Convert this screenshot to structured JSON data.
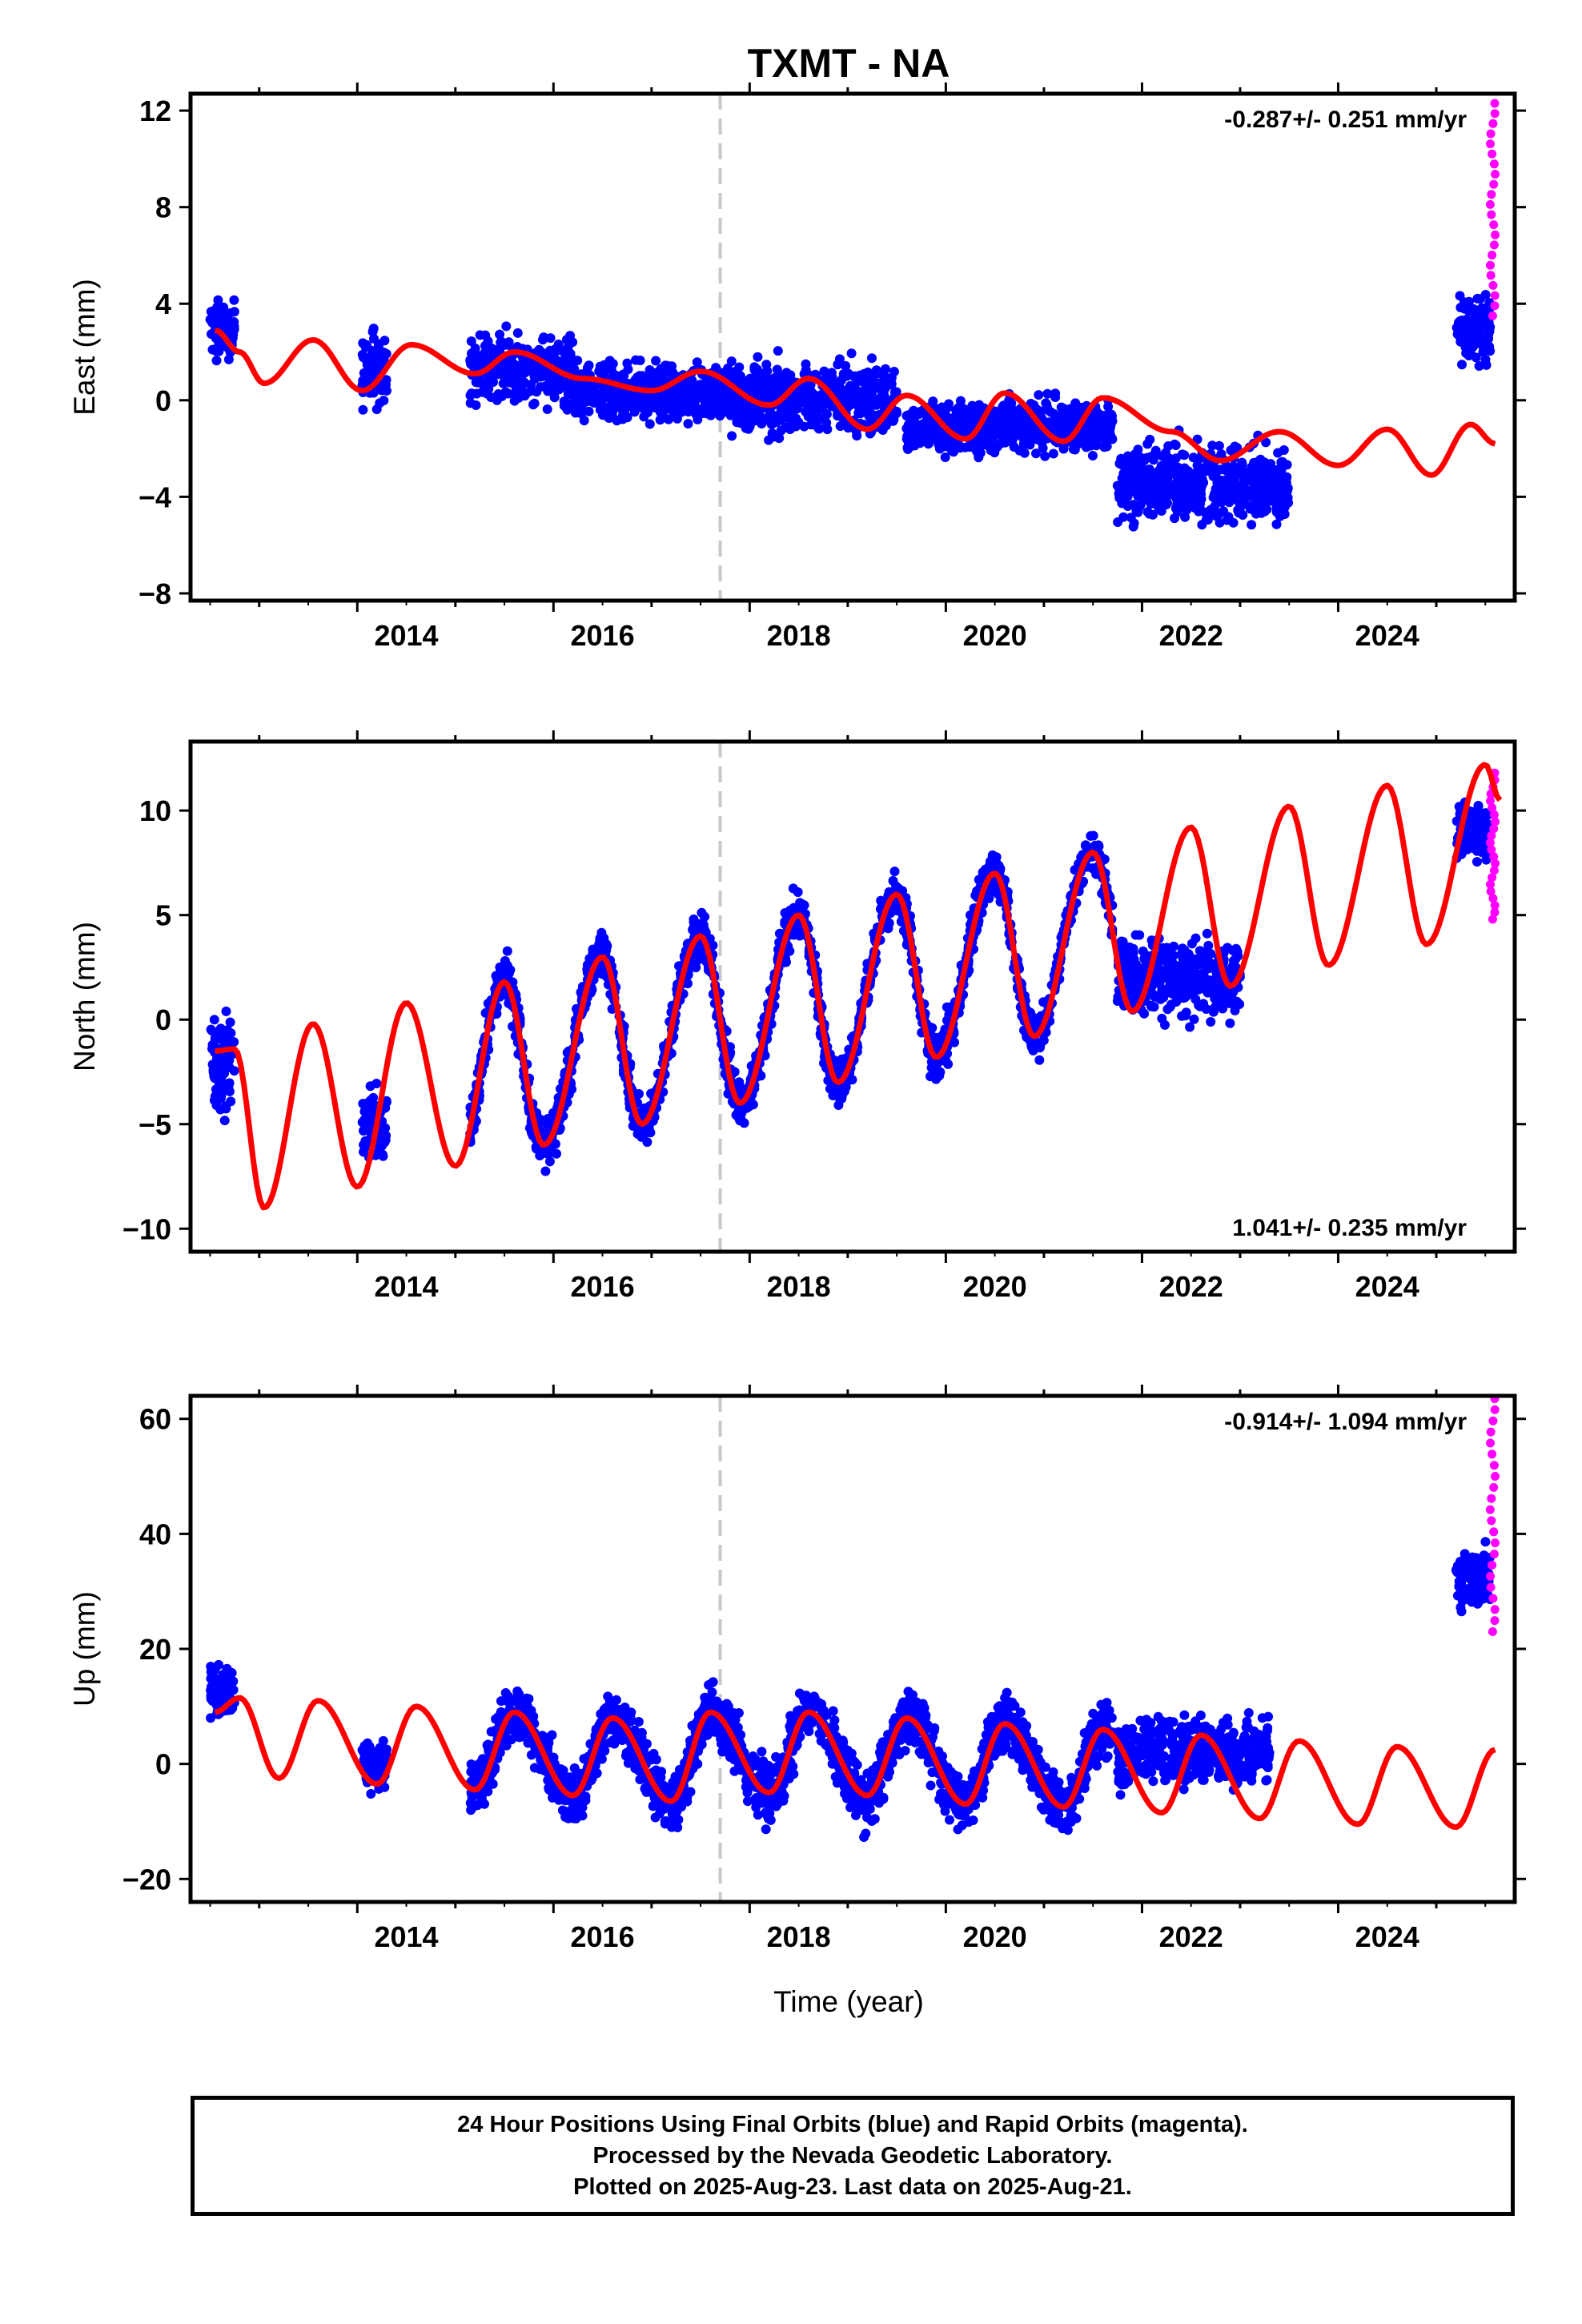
{
  "title": "TXMT - NA",
  "xlabel": "Time (year)",
  "footer": {
    "line1": "24 Hour Positions Using Final Orbits (blue) and Rapid Orbits (magenta).",
    "line2": "Processed by the Nevada Geodetic Laboratory.",
    "line3": "Plotted on 2025-Aug-23. Last data on 2025-Aug-21."
  },
  "colors": {
    "final_orbits": "#0000ff",
    "rapid_orbits": "#ff00ff",
    "model_fit": "#ff0000",
    "event_line": "#c8c8c8"
  },
  "chart_data": [
    {
      "type": "scatter",
      "ylabel": "East (mm)",
      "xlim": [
        2012.3,
        2025.8
      ],
      "ylim": [
        -8.3,
        12.7
      ],
      "xticks": [
        "2014",
        "2016",
        "2018",
        "2020",
        "2022",
        "2024"
      ],
      "yticks": [
        "−8",
        "−4",
        "0",
        "4",
        "8",
        "12"
      ],
      "ytick_values": [
        -8,
        -4,
        0,
        4,
        8,
        12
      ],
      "rate": "-0.287+/- 0.251 mm/yr",
      "rate_position": "top-right",
      "event_line_x": 2017.7,
      "model": {
        "type": "line",
        "trend_per_yr": -0.287,
        "offset": -1.6,
        "amp": 1.1,
        "x": [
          2012.55,
          2012.8,
          2013.05,
          2013.55,
          2014.05,
          2014.55,
          2015.2,
          2015.6,
          2016.3,
          2017.0,
          2017.5,
          2018.2,
          2018.6,
          2019.2,
          2019.6,
          2020.2,
          2020.6,
          2021.2,
          2021.6,
          2022.3,
          2022.8,
          2023.4,
          2024.0,
          2024.5,
          2024.95,
          2025.35,
          2025.6
        ],
        "y": [
          2.9,
          2.0,
          0.7,
          2.5,
          0.4,
          2.3,
          1.1,
          2.0,
          0.9,
          0.4,
          1.2,
          -0.2,
          0.9,
          -1.2,
          0.2,
          -1.6,
          0.3,
          -1.7,
          0.1,
          -1.3,
          -2.5,
          -1.3,
          -2.7,
          -1.2,
          -3.1,
          -1.0,
          -1.8
        ]
      },
      "final": {
        "segments": [
          {
            "x": [
              2012.5,
              2012.75
            ],
            "center": 2.9,
            "spread": 1.8
          },
          {
            "x": [
              2014.05,
              2014.3
            ],
            "center": 1.2,
            "spread": 2.5
          },
          {
            "x": [
              2015.15,
              2016.2
            ],
            "center": 1.3,
            "spread": 2.2
          },
          {
            "x": [
              2016.2,
              2017.8
            ],
            "center": 0.3,
            "spread": 1.8
          },
          {
            "x": [
              2017.8,
              2019.5
            ],
            "center": 0.1,
            "spread": 2.2
          },
          {
            "x": [
              2019.6,
              2021.7
            ],
            "center": -1.1,
            "spread": 1.6
          },
          {
            "x": [
              2021.75,
              2023.5
            ],
            "center": -3.5,
            "spread": 2.5
          },
          {
            "x": [
              2025.2,
              2025.55
            ],
            "center": 3.0,
            "spread": 2.2
          }
        ]
      },
      "rapid": {
        "x": [
          2025.55,
          2025.6
        ],
        "y": [
          3.5,
          12.3
        ]
      }
    },
    {
      "type": "scatter",
      "ylabel": "North (mm)",
      "xlim": [
        2012.3,
        2025.8
      ],
      "ylim": [
        -11.1,
        13.3
      ],
      "xticks": [
        "2014",
        "2016",
        "2018",
        "2020",
        "2022",
        "2024"
      ],
      "yticks": [
        "−10",
        "−5",
        "0",
        "5",
        "10"
      ],
      "ytick_values": [
        -10,
        -5,
        0,
        5,
        10
      ],
      "rate": "1.041+/- 0.235 mm/yr",
      "rate_position": "bottom-right",
      "event_line_x": 2017.7,
      "model": {
        "type": "line",
        "trend_per_yr": 1.041,
        "offset": -1.5,
        "amp": 5.0,
        "x": [
          2012.55,
          2012.75,
          2013.05,
          2013.55,
          2014.0,
          2014.5,
          2015.0,
          2015.5,
          2015.9,
          2016.5,
          2016.9,
          2017.5,
          2017.9,
          2018.5,
          2018.9,
          2019.5,
          2019.9,
          2020.5,
          2020.9,
          2021.5,
          2021.9,
          2022.5,
          2022.9,
          2023.5,
          2023.9,
          2024.5,
          2024.9,
          2025.5,
          2025.65
        ],
        "y": [
          -1.5,
          -1.4,
          -9.0,
          -0.2,
          -8.0,
          0.8,
          -7.0,
          1.8,
          -6.0,
          3.0,
          -5.0,
          4.0,
          -4.0,
          5.0,
          -3.0,
          6.0,
          -1.8,
          7.0,
          -0.8,
          8.0,
          0.4,
          9.2,
          1.6,
          10.2,
          2.6,
          11.2,
          3.6,
          12.2,
          10.5
        ]
      },
      "final": {
        "segments": [
          {
            "x": [
              2012.5,
              2012.75
            ],
            "center": -2.0,
            "spread": 3.5
          },
          {
            "x": [
              2014.05,
              2014.3
            ],
            "center": -5.0,
            "spread": 3.0
          },
          {
            "x": [
              2015.15,
              2021.7
            ],
            "center": 0,
            "spread": 1.8,
            "follow_model": true
          },
          {
            "x": [
              2021.75,
              2023.0
            ],
            "center": 2.0,
            "spread": 3.0
          },
          {
            "x": [
              2025.2,
              2025.55
            ],
            "center": 9.0,
            "spread": 2.0
          }
        ]
      },
      "rapid": {
        "x": [
          2025.55,
          2025.6
        ],
        "y": [
          4.8,
          11.8
        ]
      }
    },
    {
      "type": "scatter",
      "ylabel": "Up (mm)",
      "xlim": [
        2012.3,
        2025.8
      ],
      "ylim": [
        -24,
        64
      ],
      "xticks": [
        "2014",
        "2016",
        "2018",
        "2020",
        "2022",
        "2024"
      ],
      "yticks": [
        "−20",
        "0",
        "20",
        "40",
        "60"
      ],
      "ytick_values": [
        -20,
        0,
        20,
        40,
        60
      ],
      "rate": "-0.914+/- 1.094 mm/yr",
      "rate_position": "top-right",
      "event_line_x": 2017.7,
      "model": {
        "type": "line",
        "trend_per_yr": -0.914,
        "offset": 1.0,
        "amp": 8.0,
        "x": [
          2012.55,
          2012.8,
          2013.2,
          2013.6,
          2014.2,
          2014.6,
          2015.2,
          2015.6,
          2016.2,
          2016.6,
          2017.2,
          2017.6,
          2018.2,
          2018.6,
          2019.2,
          2019.6,
          2020.2,
          2020.6,
          2021.2,
          2021.6,
          2022.2,
          2022.6,
          2023.2,
          2023.6,
          2024.2,
          2024.6,
          2025.2,
          2025.6
        ],
        "y": [
          9.0,
          11.5,
          -2.5,
          11.0,
          -3.5,
          10.0,
          -4.5,
          9.0,
          -5.5,
          8.0,
          -6.5,
          9.0,
          -5.0,
          9.0,
          -5.5,
          8.0,
          -7.0,
          7.0,
          -7.5,
          6.0,
          -8.5,
          5.0,
          -9.5,
          4.0,
          -10.5,
          3.0,
          -11.0,
          2.5
        ]
      },
      "final": {
        "segments": [
          {
            "x": [
              2012.5,
              2012.75
            ],
            "center": 13.0,
            "spread": 7.0
          },
          {
            "x": [
              2014.05,
              2014.3
            ],
            "center": 0.0,
            "spread": 6.0
          },
          {
            "x": [
              2015.15,
              2021.7
            ],
            "center": 0,
            "spread": 8.0,
            "follow_model": true
          },
          {
            "x": [
              2021.75,
              2023.3
            ],
            "center": 2.0,
            "spread": 9.0
          },
          {
            "x": [
              2025.2,
              2025.55
            ],
            "center": 32.0,
            "spread": 8.0
          }
        ]
      },
      "rapid": {
        "x": [
          2025.55,
          2025.6
        ],
        "y": [
          23.0,
          63.5
        ]
      }
    }
  ]
}
